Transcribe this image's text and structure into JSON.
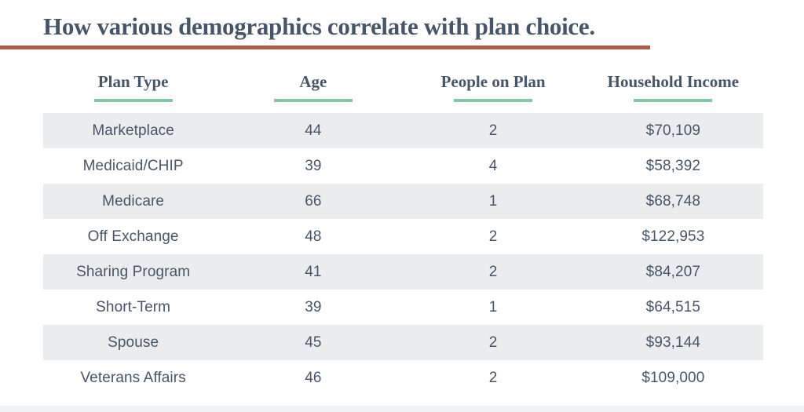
{
  "page": {
    "title": "How various demographics correlate with plan choice."
  },
  "colors": {
    "title_text": "#46566a",
    "title_rule": "#b05c44",
    "header_underline": "#82c9a5",
    "row_stripe": "#ebeced",
    "body_text": "#46566a"
  },
  "chart_data": {
    "type": "table",
    "title": "How various demographics correlate with plan choice.",
    "columns": [
      "Plan Type",
      "Age",
      "People on Plan",
      "Household Income"
    ],
    "rows": [
      [
        "Marketplace",
        "44",
        "2",
        "$70,109"
      ],
      [
        "Medicaid/CHIP",
        "39",
        "4",
        "$58,392"
      ],
      [
        "Medicare",
        "66",
        "1",
        "$68,748"
      ],
      [
        "Off Exchange",
        "48",
        "2",
        "$122,953"
      ],
      [
        "Sharing Program",
        "41",
        "2",
        "$84,207"
      ],
      [
        "Short-Term",
        "39",
        "1",
        "$64,515"
      ],
      [
        "Spouse",
        "45",
        "2",
        "$93,144"
      ],
      [
        "Veterans Affairs",
        "46",
        "2",
        "$109,000"
      ]
    ],
    "layout_hints": {
      "striped_rows": "odd rows shaded light gray",
      "header_underline": "short green rule centered under each header",
      "title_underline": "full-bleed terracotta rule from left edge"
    }
  }
}
